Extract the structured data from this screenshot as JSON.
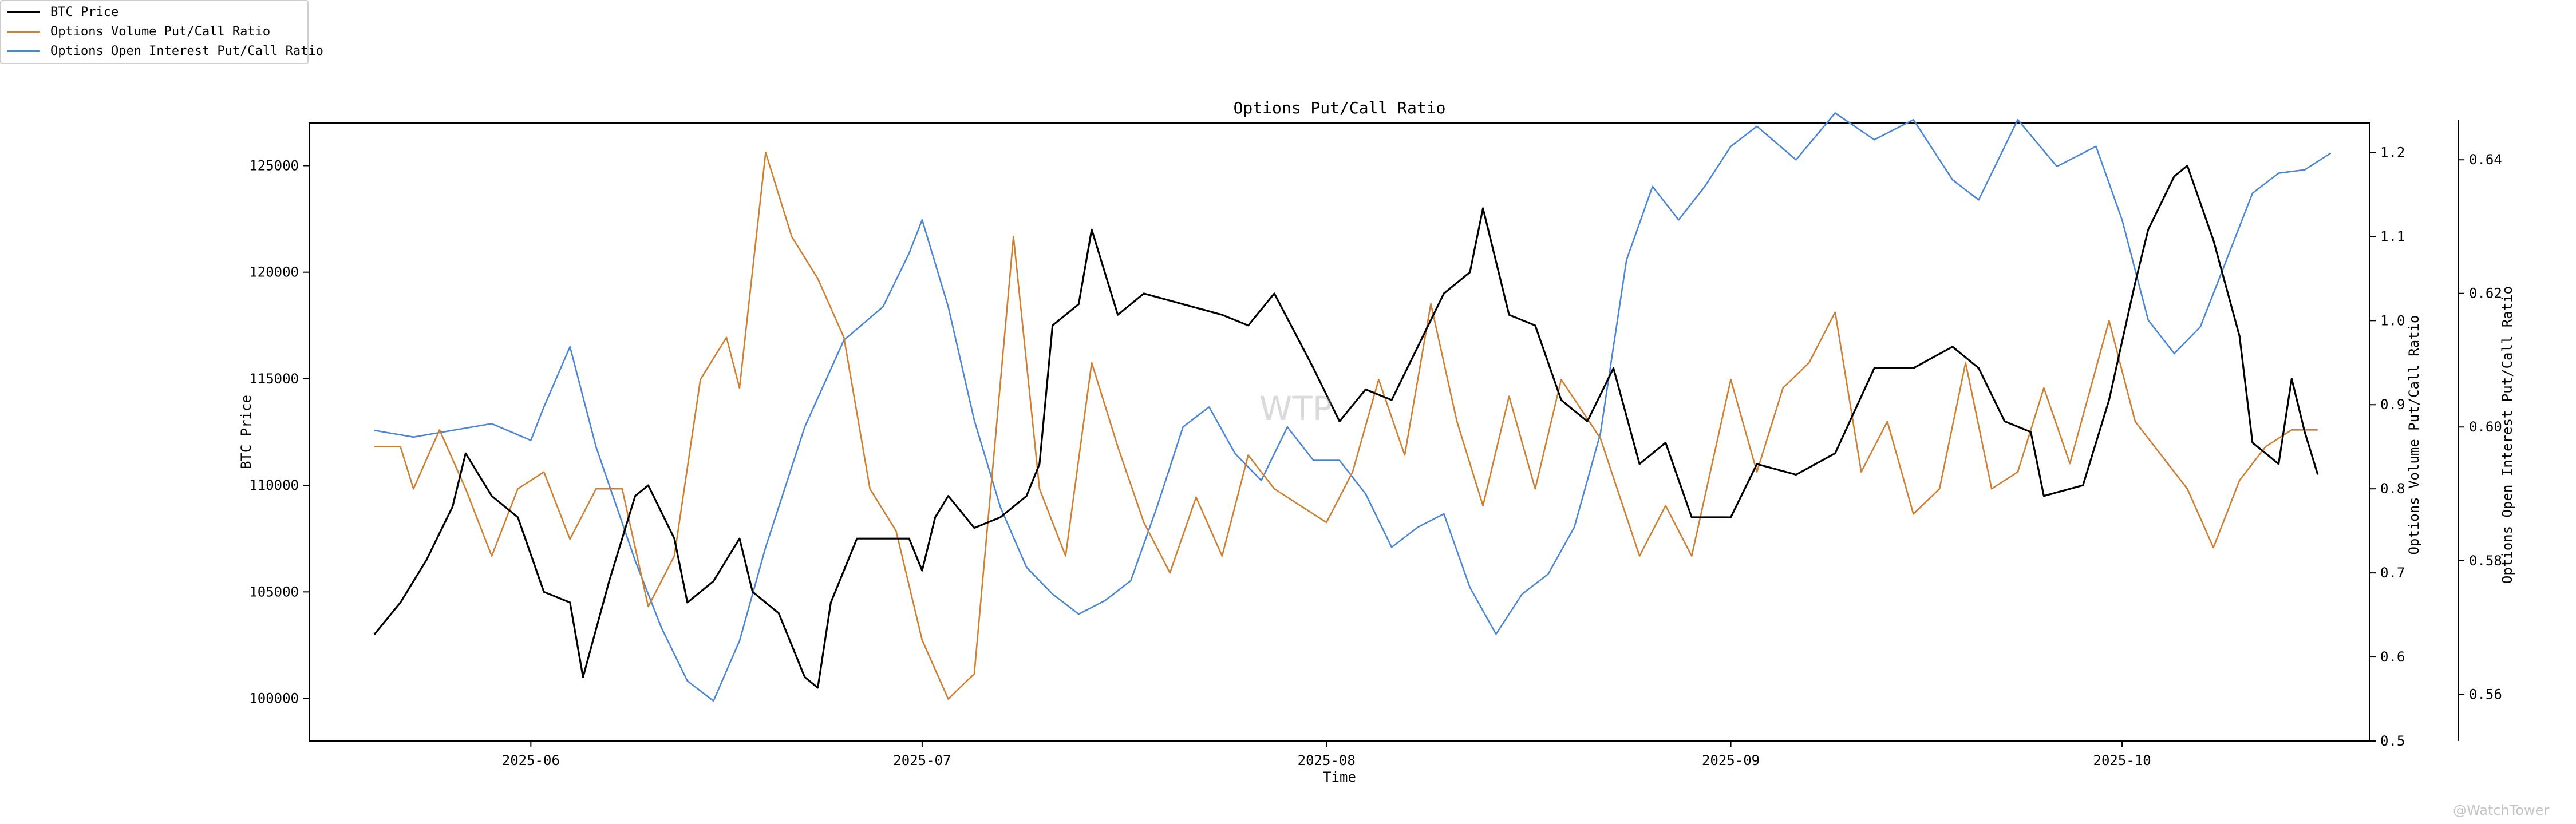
{
  "chart_data": {
    "type": "line",
    "title": "Options Put/Call Ratio",
    "xlabel": "Time",
    "x_ticks": [
      "2025-06",
      "2025-07",
      "2025-08",
      "2025-09",
      "2025-10"
    ],
    "x_range": [
      "2025-05-15",
      "2025-10-20"
    ],
    "axes": [
      {
        "id": "price",
        "label": "BTC Price",
        "side": "left",
        "range": [
          98000,
          127000
        ],
        "ticks": [
          100000,
          105000,
          110000,
          115000,
          120000,
          125000
        ]
      },
      {
        "id": "vol",
        "label": "Options Volume Put/Call Ratio",
        "side": "right",
        "range": [
          0.5,
          1.235
        ],
        "ticks": [
          "0.5",
          "0.6",
          "0.7",
          "0.8",
          "0.9",
          "1.0",
          "1.1",
          "1.2"
        ]
      },
      {
        "id": "oi",
        "label": "Options Open Interest Put/Call Ratio",
        "side": "right-outer",
        "range": [
          0.553,
          0.6455
        ],
        "ticks": [
          "0.56",
          "0.58",
          "0.60",
          "0.62",
          "0.64"
        ]
      }
    ],
    "series": [
      {
        "name": "BTC Price",
        "axis": "price",
        "color": "#000000",
        "points": [
          [
            "2025-05-20",
            103000
          ],
          [
            "2025-05-22",
            104500
          ],
          [
            "2025-05-24",
            106500
          ],
          [
            "2025-05-26",
            109000
          ],
          [
            "2025-05-27",
            111500
          ],
          [
            "2025-05-29",
            109500
          ],
          [
            "2025-05-31",
            108500
          ],
          [
            "2025-06-02",
            105000
          ],
          [
            "2025-06-04",
            104500
          ],
          [
            "2025-06-05",
            101000
          ],
          [
            "2025-06-07",
            105500
          ],
          [
            "2025-06-09",
            109500
          ],
          [
            "2025-06-10",
            110000
          ],
          [
            "2025-06-12",
            107500
          ],
          [
            "2025-06-13",
            104500
          ],
          [
            "2025-06-15",
            105500
          ],
          [
            "2025-06-17",
            107500
          ],
          [
            "2025-06-18",
            105000
          ],
          [
            "2025-06-20",
            104000
          ],
          [
            "2025-06-22",
            101000
          ],
          [
            "2025-06-23",
            100500
          ],
          [
            "2025-06-24",
            104500
          ],
          [
            "2025-06-26",
            107500
          ],
          [
            "2025-06-28",
            107500
          ],
          [
            "2025-06-30",
            107500
          ],
          [
            "2025-07-01",
            106000
          ],
          [
            "2025-07-02",
            108500
          ],
          [
            "2025-07-03",
            109500
          ],
          [
            "2025-07-05",
            108000
          ],
          [
            "2025-07-07",
            108500
          ],
          [
            "2025-07-09",
            109500
          ],
          [
            "2025-07-10",
            111000
          ],
          [
            "2025-07-11",
            117500
          ],
          [
            "2025-07-13",
            118500
          ],
          [
            "2025-07-14",
            122000
          ],
          [
            "2025-07-16",
            118000
          ],
          [
            "2025-07-18",
            119000
          ],
          [
            "2025-07-21",
            118500
          ],
          [
            "2025-07-24",
            118000
          ],
          [
            "2025-07-26",
            117500
          ],
          [
            "2025-07-28",
            119000
          ],
          [
            "2025-07-31",
            115500
          ],
          [
            "2025-08-02",
            113000
          ],
          [
            "2025-08-04",
            114500
          ],
          [
            "2025-08-06",
            114000
          ],
          [
            "2025-08-08",
            116500
          ],
          [
            "2025-08-10",
            119000
          ],
          [
            "2025-08-12",
            120000
          ],
          [
            "2025-08-13",
            123000
          ],
          [
            "2025-08-15",
            118000
          ],
          [
            "2025-08-17",
            117500
          ],
          [
            "2025-08-19",
            114000
          ],
          [
            "2025-08-21",
            113000
          ],
          [
            "2025-08-23",
            115500
          ],
          [
            "2025-08-25",
            111000
          ],
          [
            "2025-08-27",
            112000
          ],
          [
            "2025-08-29",
            108500
          ],
          [
            "2025-09-01",
            108500
          ],
          [
            "2025-09-03",
            111000
          ],
          [
            "2025-09-06",
            110500
          ],
          [
            "2025-09-09",
            111500
          ],
          [
            "2025-09-12",
            115500
          ],
          [
            "2025-09-15",
            115500
          ],
          [
            "2025-09-18",
            116500
          ],
          [
            "2025-09-20",
            115500
          ],
          [
            "2025-09-22",
            113000
          ],
          [
            "2025-09-24",
            112500
          ],
          [
            "2025-09-25",
            109500
          ],
          [
            "2025-09-28",
            110000
          ],
          [
            "2025-09-30",
            114000
          ],
          [
            "2025-10-02",
            119500
          ],
          [
            "2025-10-03",
            122000
          ],
          [
            "2025-10-05",
            124500
          ],
          [
            "2025-10-06",
            125000
          ],
          [
            "2025-10-08",
            121500
          ],
          [
            "2025-10-10",
            117000
          ],
          [
            "2025-10-11",
            112000
          ],
          [
            "2025-10-13",
            111000
          ],
          [
            "2025-10-14",
            115000
          ],
          [
            "2025-10-15",
            112500
          ],
          [
            "2025-10-16",
            110500
          ]
        ]
      },
      {
        "name": "Options Volume Put/Call Ratio",
        "axis": "vol",
        "color": "#cd7f32",
        "points": [
          [
            "2025-05-20",
            0.85
          ],
          [
            "2025-05-22",
            0.85
          ],
          [
            "2025-05-23",
            0.8
          ],
          [
            "2025-05-25",
            0.87
          ],
          [
            "2025-05-27",
            0.8
          ],
          [
            "2025-05-29",
            0.72
          ],
          [
            "2025-05-31",
            0.8
          ],
          [
            "2025-06-02",
            0.82
          ],
          [
            "2025-06-04",
            0.74
          ],
          [
            "2025-06-06",
            0.8
          ],
          [
            "2025-06-08",
            0.8
          ],
          [
            "2025-06-10",
            0.66
          ],
          [
            "2025-06-12",
            0.72
          ],
          [
            "2025-06-14",
            0.93
          ],
          [
            "2025-06-16",
            0.98
          ],
          [
            "2025-06-17",
            0.92
          ],
          [
            "2025-06-19",
            1.2
          ],
          [
            "2025-06-21",
            1.1
          ],
          [
            "2025-06-23",
            1.05
          ],
          [
            "2025-06-25",
            0.98
          ],
          [
            "2025-06-27",
            0.8
          ],
          [
            "2025-06-29",
            0.75
          ],
          [
            "2025-07-01",
            0.62
          ],
          [
            "2025-07-03",
            0.55
          ],
          [
            "2025-07-05",
            0.58
          ],
          [
            "2025-07-08",
            1.1
          ],
          [
            "2025-07-10",
            0.8
          ],
          [
            "2025-07-12",
            0.72
          ],
          [
            "2025-07-14",
            0.95
          ],
          [
            "2025-07-16",
            0.85
          ],
          [
            "2025-07-18",
            0.76
          ],
          [
            "2025-07-20",
            0.7
          ],
          [
            "2025-07-22",
            0.79
          ],
          [
            "2025-07-24",
            0.72
          ],
          [
            "2025-07-26",
            0.84
          ],
          [
            "2025-07-28",
            0.8
          ],
          [
            "2025-07-30",
            0.78
          ],
          [
            "2025-08-01",
            0.76
          ],
          [
            "2025-08-03",
            0.82
          ],
          [
            "2025-08-05",
            0.93
          ],
          [
            "2025-08-07",
            0.84
          ],
          [
            "2025-08-09",
            1.02
          ],
          [
            "2025-08-11",
            0.88
          ],
          [
            "2025-08-13",
            0.78
          ],
          [
            "2025-08-15",
            0.91
          ],
          [
            "2025-08-17",
            0.8
          ],
          [
            "2025-08-19",
            0.93
          ],
          [
            "2025-08-22",
            0.86
          ],
          [
            "2025-08-25",
            0.72
          ],
          [
            "2025-08-27",
            0.78
          ],
          [
            "2025-08-29",
            0.72
          ],
          [
            "2025-09-01",
            0.93
          ],
          [
            "2025-09-03",
            0.82
          ],
          [
            "2025-09-05",
            0.92
          ],
          [
            "2025-09-07",
            0.95
          ],
          [
            "2025-09-09",
            1.01
          ],
          [
            "2025-09-11",
            0.82
          ],
          [
            "2025-09-13",
            0.88
          ],
          [
            "2025-09-15",
            0.77
          ],
          [
            "2025-09-17",
            0.8
          ],
          [
            "2025-09-19",
            0.95
          ],
          [
            "2025-09-21",
            0.8
          ],
          [
            "2025-09-23",
            0.82
          ],
          [
            "2025-09-25",
            0.92
          ],
          [
            "2025-09-27",
            0.83
          ],
          [
            "2025-09-30",
            1.0
          ],
          [
            "2025-10-02",
            0.88
          ],
          [
            "2025-10-04",
            0.84
          ],
          [
            "2025-10-06",
            0.8
          ],
          [
            "2025-10-08",
            0.73
          ],
          [
            "2025-10-10",
            0.81
          ],
          [
            "2025-10-12",
            0.85
          ],
          [
            "2025-10-14",
            0.87
          ],
          [
            "2025-10-16",
            0.87
          ]
        ]
      },
      {
        "name": "Options Open Interest Put/Call Ratio",
        "axis": "oi",
        "color": "#4a86d4",
        "points": [
          [
            "2025-05-20",
            0.5995
          ],
          [
            "2025-05-23",
            0.5985
          ],
          [
            "2025-05-26",
            0.5995
          ],
          [
            "2025-05-29",
            0.6005
          ],
          [
            "2025-06-01",
            0.598
          ],
          [
            "2025-06-02",
            0.603
          ],
          [
            "2025-06-04",
            0.612
          ],
          [
            "2025-06-06",
            0.597
          ],
          [
            "2025-06-09",
            0.58
          ],
          [
            "2025-06-11",
            0.57
          ],
          [
            "2025-06-13",
            0.562
          ],
          [
            "2025-06-15",
            0.559
          ],
          [
            "2025-06-17",
            0.568
          ],
          [
            "2025-06-19",
            0.582
          ],
          [
            "2025-06-22",
            0.6
          ],
          [
            "2025-06-25",
            0.613
          ],
          [
            "2025-06-28",
            0.618
          ],
          [
            "2025-06-30",
            0.626
          ],
          [
            "2025-07-01",
            0.631
          ],
          [
            "2025-07-03",
            0.618
          ],
          [
            "2025-07-05",
            0.601
          ],
          [
            "2025-07-07",
            0.588
          ],
          [
            "2025-07-09",
            0.579
          ],
          [
            "2025-07-11",
            0.575
          ],
          [
            "2025-07-13",
            0.572
          ],
          [
            "2025-07-15",
            0.574
          ],
          [
            "2025-07-17",
            0.577
          ],
          [
            "2025-07-19",
            0.588
          ],
          [
            "2025-07-21",
            0.6
          ],
          [
            "2025-07-23",
            0.603
          ],
          [
            "2025-07-25",
            0.596
          ],
          [
            "2025-07-27",
            0.592
          ],
          [
            "2025-07-29",
            0.6
          ],
          [
            "2025-07-31",
            0.595
          ],
          [
            "2025-08-02",
            0.595
          ],
          [
            "2025-08-04",
            0.59
          ],
          [
            "2025-08-06",
            0.582
          ],
          [
            "2025-08-08",
            0.585
          ],
          [
            "2025-08-10",
            0.587
          ],
          [
            "2025-08-12",
            0.576
          ],
          [
            "2025-08-14",
            0.569
          ],
          [
            "2025-08-16",
            0.575
          ],
          [
            "2025-08-18",
            0.578
          ],
          [
            "2025-08-20",
            0.585
          ],
          [
            "2025-08-22",
            0.599
          ],
          [
            "2025-08-24",
            0.625
          ],
          [
            "2025-08-26",
            0.636
          ],
          [
            "2025-08-28",
            0.631
          ],
          [
            "2025-08-30",
            0.636
          ],
          [
            "2025-09-01",
            0.642
          ],
          [
            "2025-09-03",
            0.645
          ],
          [
            "2025-09-06",
            0.64
          ],
          [
            "2025-09-09",
            0.647
          ],
          [
            "2025-09-12",
            0.643
          ],
          [
            "2025-09-15",
            0.646
          ],
          [
            "2025-09-18",
            0.637
          ],
          [
            "2025-09-20",
            0.634
          ],
          [
            "2025-09-23",
            0.646
          ],
          [
            "2025-09-26",
            0.639
          ],
          [
            "2025-09-29",
            0.642
          ],
          [
            "2025-10-01",
            0.631
          ],
          [
            "2025-10-03",
            0.616
          ],
          [
            "2025-10-05",
            0.611
          ],
          [
            "2025-10-07",
            0.615
          ],
          [
            "2025-10-09",
            0.625
          ],
          [
            "2025-10-11",
            0.635
          ],
          [
            "2025-10-13",
            0.638
          ],
          [
            "2025-10-15",
            0.6385
          ],
          [
            "2025-10-17",
            0.641
          ]
        ]
      }
    ],
    "watermark": "WTP",
    "legend_position": "top-left",
    "grid": false
  },
  "footer_text": "@WatchTower"
}
